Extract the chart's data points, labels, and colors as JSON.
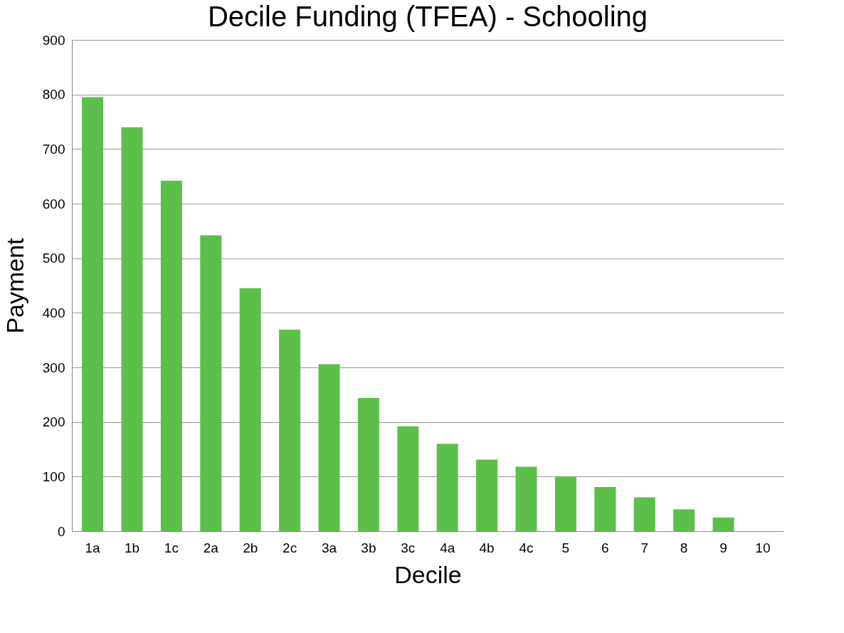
{
  "chart_data": {
    "type": "bar",
    "title": "Decile Funding (TFEA) - Schooling",
    "xlabel": "Decile",
    "ylabel": "Payment",
    "categories": [
      "1a",
      "1b",
      "1c",
      "2a",
      "2b",
      "2c",
      "3a",
      "3b",
      "3c",
      "4a",
      "4b",
      "4c",
      "5",
      "6",
      "7",
      "8",
      "9",
      "10"
    ],
    "values": [
      795,
      740,
      642,
      542,
      445,
      369,
      306,
      244,
      192,
      160,
      131,
      118,
      100,
      81,
      62,
      40,
      25,
      0
    ],
    "color": "#5cbf4a",
    "ylim": [
      0,
      900
    ],
    "yticks": [
      0,
      100,
      200,
      300,
      400,
      500,
      600,
      700,
      800,
      900
    ],
    "grid": "y"
  }
}
